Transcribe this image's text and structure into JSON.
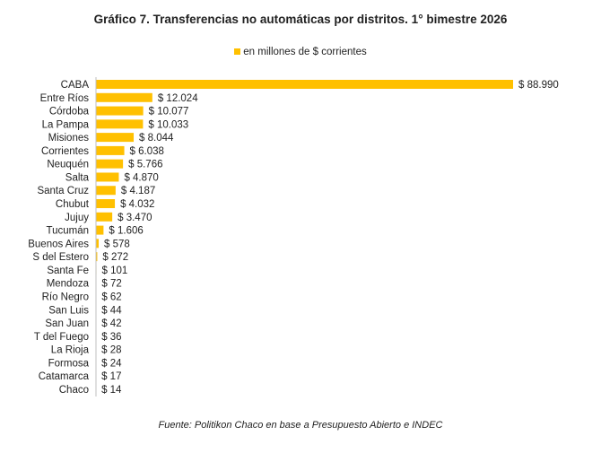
{
  "chart_data": {
    "type": "bar",
    "orientation": "horizontal",
    "title": "Gráfico 7. Transferencias no automáticas por distritos. 1° bimestre 2026",
    "legend": {
      "entries": [
        "en millones de $ corrientes"
      ],
      "placement": "top"
    },
    "source": "Fuente: Politikon Chaco en base a Presupuesto Abierto e INDEC",
    "categories": [
      "CABA",
      "Entre Ríos",
      "Córdoba",
      "La Pampa",
      "Misiones",
      "Corrientes",
      "Neuquén",
      "Salta",
      "Santa Cruz",
      "Chubut",
      "Jujuy",
      "Tucumán",
      "Buenos Aires",
      "S del Estero",
      "Santa Fe",
      "Mendoza",
      "Río Negro",
      "San Luis",
      "San Juan",
      "T del Fuego",
      "La Rioja",
      "Formosa",
      "Catamarca",
      "Chaco"
    ],
    "values": [
      88990,
      12024,
      10077,
      10033,
      8044,
      6038,
      5766,
      4870,
      4187,
      4032,
      3470,
      1606,
      578,
      272,
      101,
      72,
      62,
      44,
      42,
      36,
      28,
      24,
      17,
      14
    ],
    "labels": [
      "$ 88.990",
      "$ 12.024",
      "$ 10.077",
      "$ 10.033",
      "$ 8.044",
      "$ 6.038",
      "$ 5.766",
      "$ 4.870",
      "$ 4.187",
      "$ 4.032",
      "$ 3.470",
      "$ 1.606",
      "$ 578",
      "$ 272",
      "$ 101",
      "$ 72",
      "$ 62",
      "$ 44",
      "$ 42",
      "$ 36",
      "$ 28",
      "$ 24",
      "$ 17",
      "$ 14"
    ],
    "xlim": [
      0,
      88990
    ],
    "grid": false,
    "colors": {
      "bar": "#FFC000",
      "axis": "#BFBFBF"
    }
  }
}
